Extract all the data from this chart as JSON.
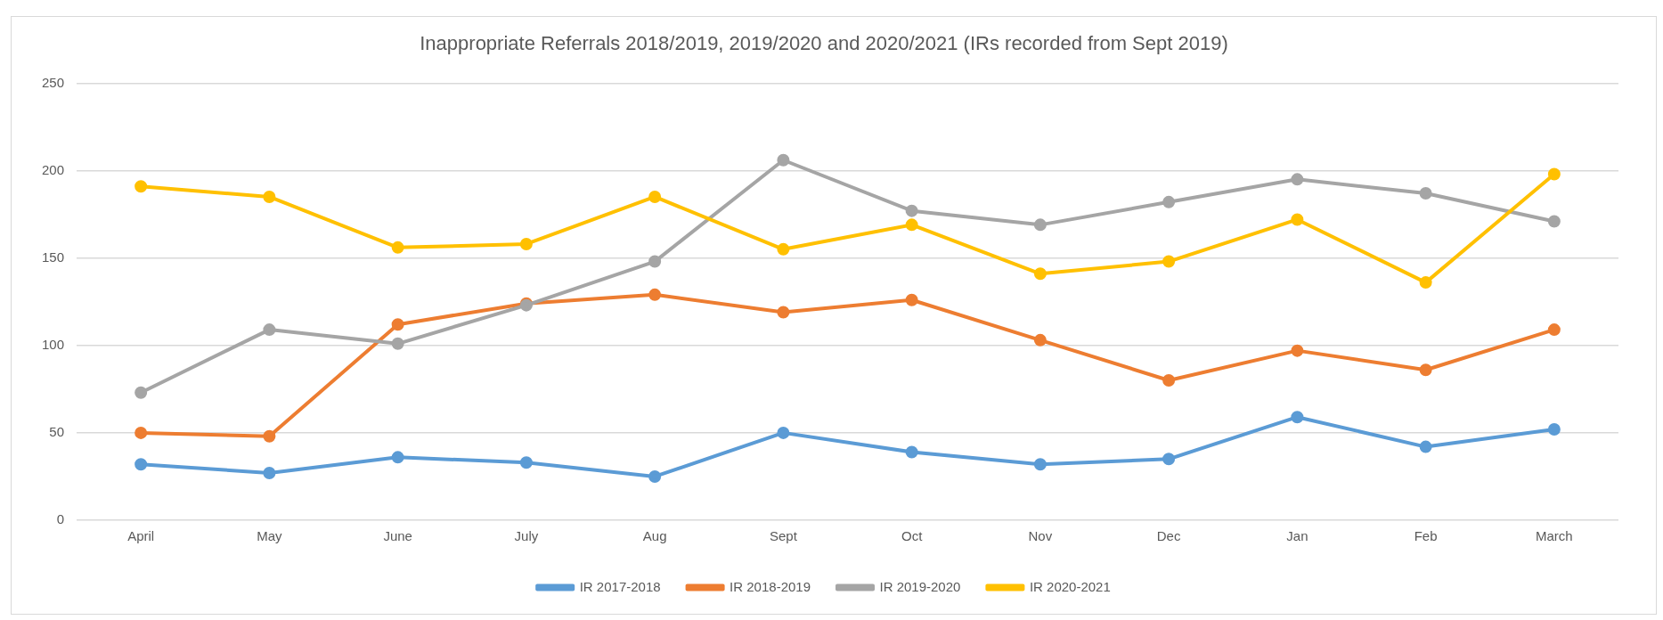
{
  "chart_data": {
    "type": "line",
    "title": "Inappropriate Referrals 2018/2019, 2019/2020 and 2020/2021 (IRs recorded from Sept 2019)",
    "categories": [
      "April",
      "May",
      "June",
      "July",
      "Aug",
      "Sept",
      "Oct",
      "Nov",
      "Dec",
      "Jan",
      "Feb",
      "March"
    ],
    "series": [
      {
        "name": "IR 2017-2018",
        "color": "#5b9bd5",
        "values": [
          32,
          27,
          36,
          33,
          25,
          50,
          39,
          32,
          35,
          59,
          42,
          52
        ]
      },
      {
        "name": "IR 2018-2019",
        "color": "#ed7d31",
        "values": [
          50,
          48,
          112,
          124,
          129,
          119,
          126,
          103,
          80,
          97,
          86,
          109
        ]
      },
      {
        "name": "IR 2019-2020",
        "color": "#a5a5a5",
        "values": [
          73,
          109,
          101,
          123,
          148,
          206,
          177,
          169,
          182,
          195,
          187,
          171
        ]
      },
      {
        "name": "IR 2020-2021",
        "color": "#ffc000",
        "values": [
          191,
          185,
          156,
          158,
          185,
          155,
          169,
          141,
          148,
          172,
          136,
          198
        ]
      }
    ],
    "ylim": [
      0,
      250
    ],
    "yticks": [
      0,
      50,
      100,
      150,
      200,
      250
    ],
    "grid": "y",
    "legend": "bottom",
    "marker": "circle",
    "line_style": "solid"
  }
}
